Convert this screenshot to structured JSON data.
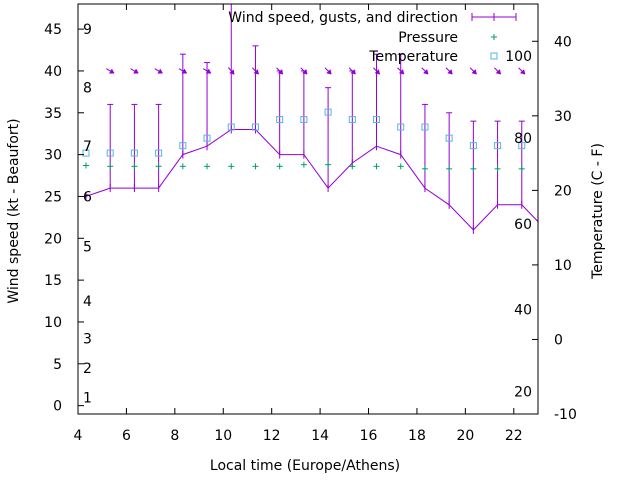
{
  "chart_data": {
    "type": "line",
    "xlabel": "Local time (Europe/Athens)",
    "ylabel_left": "Wind speed (kt - Beaufort)",
    "ylabel_right": "Temperature (C - F)",
    "xlim": [
      4,
      23
    ],
    "ylim_left": [
      -1,
      48
    ],
    "ylim_right": [
      -10,
      45
    ],
    "x_ticks": [
      4,
      6,
      8,
      10,
      12,
      14,
      16,
      18,
      20,
      22
    ],
    "y_left_ticks": [
      0,
      5,
      10,
      15,
      20,
      25,
      30,
      35,
      40,
      45
    ],
    "y_right_ticks": [
      -10,
      0,
      10,
      20,
      30,
      40
    ],
    "beaufort_labels": [
      {
        "label": "1",
        "y": 1
      },
      {
        "label": "2",
        "y": 4.5
      },
      {
        "label": "3",
        "y": 8
      },
      {
        "label": "4",
        "y": 12.5
      },
      {
        "label": "5",
        "y": 19
      },
      {
        "label": "6",
        "y": 25
      },
      {
        "label": "7",
        "y": 31
      },
      {
        "label": "8",
        "y": 38
      },
      {
        "label": "9",
        "y": 45
      }
    ],
    "fahrenheit_labels": [
      {
        "label": "20",
        "y": -7
      },
      {
        "label": "40",
        "y": 4
      },
      {
        "label": "60",
        "y": 15.5
      },
      {
        "label": "80",
        "y": 27
      },
      {
        "label": "100",
        "y": 38
      }
    ],
    "legend": {
      "position": "top-right",
      "wind": "Wind speed, gusts, and direction",
      "pressure": "Pressure",
      "temperature": "Temperature"
    },
    "colors": {
      "wind": "#9400d3",
      "pressure": "#009e73",
      "temperature": "#56b4e9"
    },
    "series": [
      {
        "name": "Wind speed, gusts, and direction",
        "x": [
          4.33,
          5.33,
          6.33,
          7.33,
          8.33,
          9.33,
          10.33,
          11.33,
          12.33,
          13.33,
          14.33,
          15.33,
          16.33,
          17.33,
          18.33,
          19.33,
          20.33,
          21.33,
          22.33,
          23
        ],
        "speed": [
          25,
          26,
          26,
          26,
          30,
          31,
          33,
          33,
          30,
          30,
          26,
          29,
          31,
          30,
          26,
          24,
          21,
          24,
          24,
          22
        ],
        "gust": [
          null,
          36,
          36,
          36,
          42,
          41,
          48,
          43,
          40,
          40,
          38,
          40,
          42,
          42,
          36,
          35,
          34,
          34,
          34,
          null
        ],
        "direction_deg": [
          null,
          300,
          300,
          300,
          300,
          300,
          320,
          315,
          315,
          315,
          315,
          315,
          315,
          315,
          315,
          315,
          315,
          315,
          315,
          null
        ]
      },
      {
        "name": "Pressure",
        "x": [
          4.33,
          5.33,
          6.33,
          7.33,
          8.33,
          9.33,
          10.33,
          11.33,
          12.33,
          13.33,
          14.33,
          15.33,
          16.33,
          17.33,
          18.33,
          19.33,
          20.33,
          21.33,
          22.33
        ],
        "values": [
          28.7,
          28.6,
          28.6,
          28.6,
          28.6,
          28.6,
          28.6,
          28.6,
          28.6,
          28.8,
          28.8,
          28.6,
          28.6,
          28.6,
          28.3,
          28.3,
          28.3,
          28.3,
          28.3
        ]
      },
      {
        "name": "Temperature",
        "x": [
          4.33,
          5.33,
          6.33,
          7.33,
          8.33,
          9.33,
          10.33,
          11.33,
          12.33,
          13.33,
          14.33,
          15.33,
          16.33,
          17.33,
          18.33,
          19.33,
          20.33,
          21.33,
          22.33
        ],
        "values": [
          25,
          25,
          25,
          25,
          26,
          27,
          28.5,
          28.5,
          29.5,
          29.5,
          30.5,
          29.5,
          29.5,
          28.5,
          28.5,
          27,
          26,
          26,
          26
        ]
      }
    ]
  }
}
